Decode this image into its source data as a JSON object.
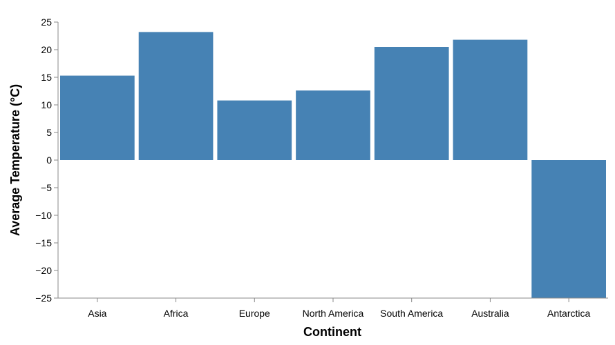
{
  "chart_data": {
    "type": "bar",
    "title": "",
    "xlabel": "Continent",
    "ylabel": "Average Temperature (°C)",
    "categories": [
      "Asia",
      "Africa",
      "Europe",
      "North America",
      "South America",
      "Australia",
      "Antarctica"
    ],
    "values": [
      15.3,
      23.2,
      10.8,
      12.6,
      20.5,
      21.8,
      -26.5
    ],
    "ylim": [
      -25,
      25
    ],
    "yticks": [
      25,
      20,
      15,
      10,
      5,
      0,
      -5,
      -10,
      -15,
      -20,
      -25
    ],
    "ytick_labels": [
      "25",
      "20",
      "15",
      "10",
      "5",
      "0",
      "−5",
      "−10",
      "−15",
      "−20",
      "−25"
    ],
    "bar_color": "#4682b4",
    "grid": false,
    "legend": "none"
  }
}
